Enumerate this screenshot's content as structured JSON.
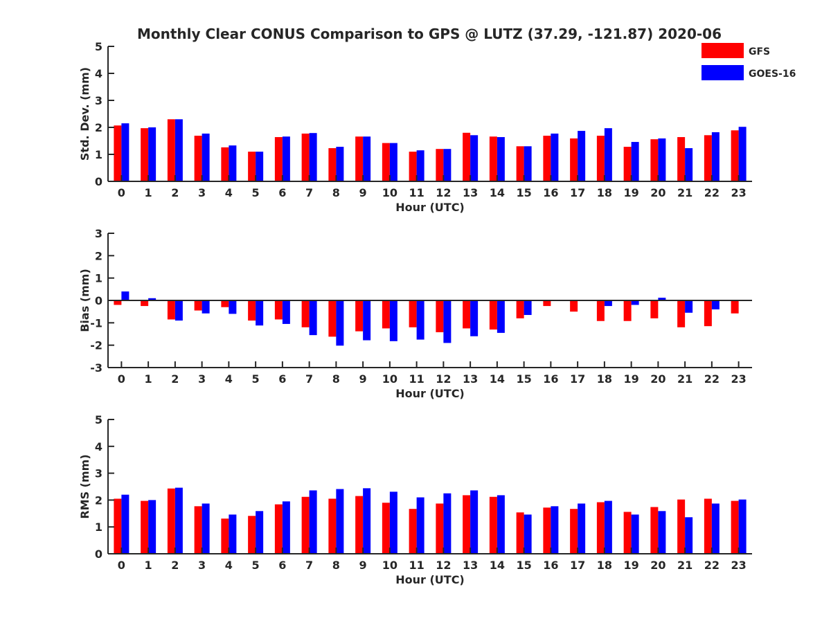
{
  "title": "Monthly Clear CONUS Comparison to GPS @ LUTZ (37.29, -121.87) 2020-06",
  "legend": [
    {
      "name": "GFS",
      "color": "#ff0000"
    },
    {
      "name": "GOES-16",
      "color": "#0000ff"
    }
  ],
  "chart_data": [
    {
      "type": "bar",
      "ylabel": "Std. Dev. (mm)",
      "xlabel": "Hour (UTC)",
      "ylim": [
        0,
        5
      ],
      "yticks": [
        "0",
        "1",
        "2",
        "3",
        "4",
        "5"
      ],
      "yticks_values": [
        0,
        1,
        2,
        3,
        4,
        5
      ],
      "categories": [
        "0",
        "1",
        "2",
        "3",
        "4",
        "5",
        "6",
        "7",
        "8",
        "9",
        "10",
        "11",
        "12",
        "13",
        "14",
        "15",
        "16",
        "17",
        "18",
        "19",
        "20",
        "21",
        "22",
        "23"
      ],
      "series": [
        {
          "name": "GFS",
          "color": "#ff0000",
          "values": [
            2.07,
            1.97,
            2.3,
            1.69,
            1.26,
            1.1,
            1.64,
            1.77,
            1.23,
            1.66,
            1.42,
            1.1,
            1.2,
            1.8,
            1.66,
            1.3,
            1.69,
            1.59,
            1.69,
            1.28,
            1.56,
            1.64,
            1.71,
            1.89
          ]
        },
        {
          "name": "GOES-16",
          "color": "#0000ff",
          "values": [
            2.15,
            2.0,
            2.3,
            1.77,
            1.33,
            1.1,
            1.66,
            1.79,
            1.28,
            1.66,
            1.42,
            1.15,
            1.2,
            1.71,
            1.64,
            1.3,
            1.77,
            1.87,
            1.97,
            1.46,
            1.59,
            1.23,
            1.82,
            2.02
          ]
        }
      ]
    },
    {
      "type": "bar",
      "ylabel": "Bias (mm)",
      "xlabel": "Hour (UTC)",
      "ylim": [
        -3,
        3
      ],
      "yticks": [
        "-3",
        "-2",
        "-1",
        "0",
        "1",
        "2",
        "3"
      ],
      "yticks_values": [
        -3,
        -2,
        -1,
        0,
        1,
        2,
        3
      ],
      "zero_line": true,
      "categories": [
        "0",
        "1",
        "2",
        "3",
        "4",
        "5",
        "6",
        "7",
        "8",
        "9",
        "10",
        "11",
        "12",
        "13",
        "14",
        "15",
        "16",
        "17",
        "18",
        "19",
        "20",
        "21",
        "22",
        "23"
      ],
      "series": [
        {
          "name": "GFS",
          "color": "#ff0000",
          "values": [
            -0.2,
            -0.25,
            -0.85,
            -0.45,
            -0.3,
            -0.9,
            -0.85,
            -1.2,
            -1.62,
            -1.38,
            -1.25,
            -1.2,
            -1.42,
            -1.25,
            -1.3,
            -0.8,
            -0.25,
            -0.5,
            -0.92,
            -0.92,
            -0.8,
            -1.2,
            -1.15,
            -0.58
          ]
        },
        {
          "name": "GOES-16",
          "color": "#0000ff",
          "values": [
            0.4,
            0.1,
            -0.9,
            -0.58,
            -0.6,
            -1.12,
            -1.05,
            -1.55,
            -2.02,
            -1.78,
            -1.82,
            -1.75,
            -1.9,
            -1.6,
            -1.45,
            -0.65,
            0.02,
            0.0,
            -0.25,
            -0.2,
            0.12,
            -0.55,
            -0.4,
            0.02
          ]
        }
      ]
    },
    {
      "type": "bar",
      "ylabel": "RMS (mm)",
      "xlabel": "Hour (UTC)",
      "ylim": [
        0,
        5
      ],
      "yticks": [
        "0",
        "1",
        "2",
        "3",
        "4",
        "5"
      ],
      "yticks_values": [
        0,
        1,
        2,
        3,
        4,
        5
      ],
      "categories": [
        "0",
        "1",
        "2",
        "3",
        "4",
        "5",
        "6",
        "7",
        "8",
        "9",
        "10",
        "11",
        "12",
        "13",
        "14",
        "15",
        "16",
        "17",
        "18",
        "19",
        "20",
        "21",
        "22",
        "23"
      ],
      "series": [
        {
          "name": "GFS",
          "color": "#ff0000",
          "values": [
            2.05,
            1.97,
            2.43,
            1.77,
            1.31,
            1.41,
            1.84,
            2.12,
            2.05,
            2.15,
            1.9,
            1.67,
            1.87,
            2.18,
            2.12,
            1.54,
            1.72,
            1.67,
            1.92,
            1.56,
            1.74,
            2.02,
            2.05,
            1.97
          ]
        },
        {
          "name": "GOES-16",
          "color": "#0000ff",
          "values": [
            2.2,
            2.0,
            2.46,
            1.87,
            1.46,
            1.59,
            1.95,
            2.36,
            2.41,
            2.44,
            2.31,
            2.1,
            2.25,
            2.36,
            2.18,
            1.46,
            1.77,
            1.87,
            1.97,
            1.46,
            1.59,
            1.36,
            1.87,
            2.02
          ]
        }
      ]
    }
  ]
}
